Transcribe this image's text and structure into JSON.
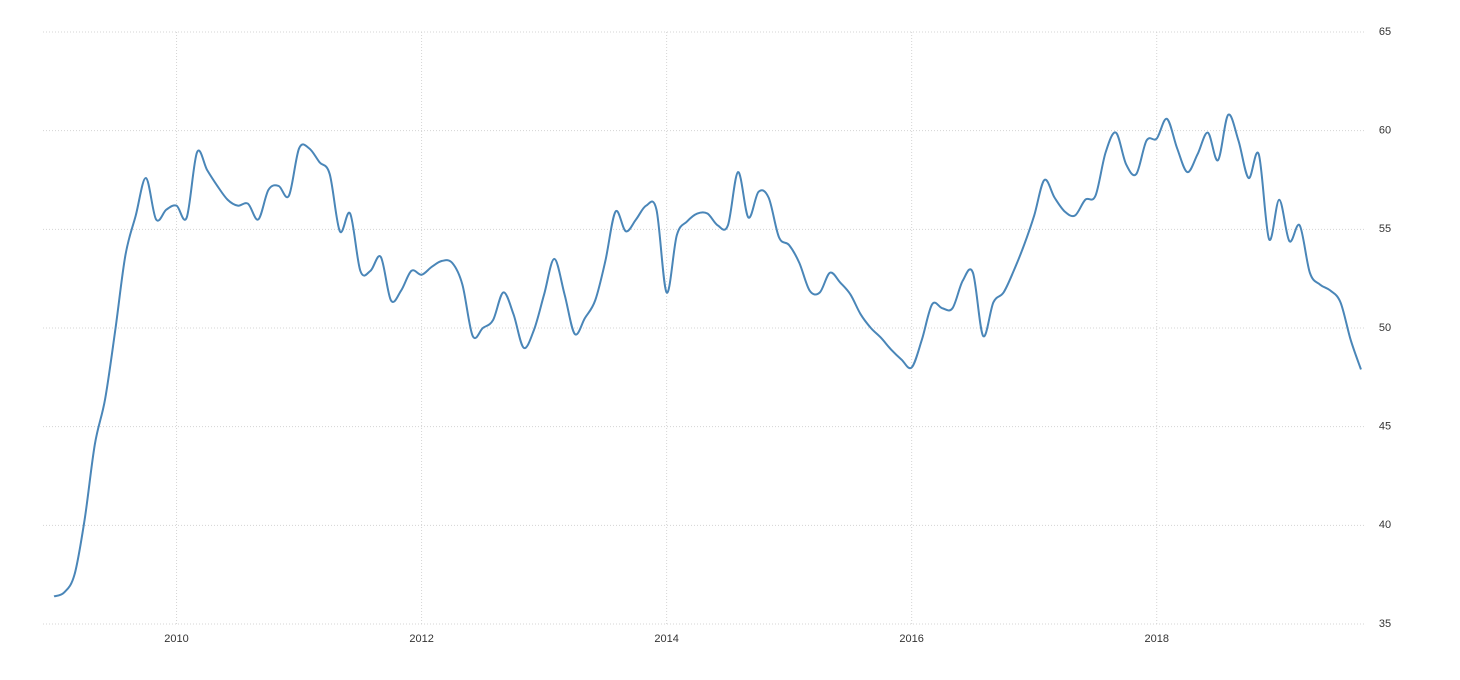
{
  "chart_data": {
    "type": "line",
    "xlim": [
      2008.91,
      2019.7
    ],
    "xticks": [
      2010,
      2012,
      2014,
      2016,
      2018
    ],
    "ylim": [
      35,
      65
    ],
    "yticks": [
      35,
      40,
      45,
      50,
      55,
      60,
      65
    ],
    "grid": true,
    "x": [
      2009,
      2009.083,
      2009.167,
      2009.25,
      2009.333,
      2009.417,
      2009.5,
      2009.583,
      2009.667,
      2009.75,
      2009.833,
      2009.917,
      2010,
      2010.083,
      2010.167,
      2010.25,
      2010.333,
      2010.417,
      2010.5,
      2010.583,
      2010.667,
      2010.75,
      2010.833,
      2010.917,
      2011,
      2011.083,
      2011.167,
      2011.25,
      2011.333,
      2011.417,
      2011.5,
      2011.583,
      2011.667,
      2011.75,
      2011.833,
      2011.917,
      2012,
      2012.083,
      2012.167,
      2012.25,
      2012.333,
      2012.417,
      2012.5,
      2012.583,
      2012.667,
      2012.75,
      2012.833,
      2012.917,
      2013,
      2013.083,
      2013.167,
      2013.25,
      2013.333,
      2013.417,
      2013.5,
      2013.583,
      2013.667,
      2013.75,
      2013.833,
      2013.917,
      2014,
      2014.083,
      2014.167,
      2014.25,
      2014.333,
      2014.417,
      2014.5,
      2014.583,
      2014.667,
      2014.75,
      2014.833,
      2014.917,
      2015,
      2015.083,
      2015.167,
      2015.25,
      2015.333,
      2015.417,
      2015.5,
      2015.583,
      2015.667,
      2015.75,
      2015.833,
      2015.917,
      2016,
      2016.083,
      2016.167,
      2016.25,
      2016.333,
      2016.417,
      2016.5,
      2016.583,
      2016.667,
      2016.75,
      2016.833,
      2016.917,
      2017,
      2017.083,
      2017.167,
      2017.25,
      2017.333,
      2017.417,
      2017.5,
      2017.583,
      2017.667,
      2017.75,
      2017.833,
      2017.917,
      2018,
      2018.083,
      2018.167,
      2018.25,
      2018.333,
      2018.417,
      2018.5,
      2018.583,
      2018.667,
      2018.75,
      2018.833,
      2018.917,
      2019,
      2019.083,
      2019.167,
      2019.25,
      2019.333,
      2019.417,
      2019.5,
      2019.583,
      2019.667
    ],
    "series": [
      {
        "color": "#4a86b8",
        "values": [
          36.4,
          36.6,
          37.5,
          40.3,
          44.1,
          46.4,
          49.9,
          53.7,
          55.7,
          57.6,
          55.5,
          56.0,
          56.2,
          55.6,
          58.9,
          58.0,
          57.2,
          56.5,
          56.2,
          56.3,
          55.5,
          57.0,
          57.2,
          56.7,
          59.1,
          59.1,
          58.4,
          57.8,
          54.9,
          55.8,
          52.9,
          52.9,
          53.6,
          51.4,
          51.9,
          52.9,
          52.7,
          53.1,
          53.4,
          53.3,
          52.2,
          49.6,
          50.0,
          50.4,
          51.8,
          50.7,
          49.0,
          49.9,
          51.7,
          53.5,
          51.7,
          49.7,
          50.5,
          51.4,
          53.4,
          55.9,
          54.9,
          55.5,
          56.2,
          56.0,
          51.8,
          54.7,
          55.4,
          55.8,
          55.8,
          55.2,
          55.2,
          57.9,
          55.6,
          56.9,
          56.6,
          54.6,
          54.2,
          53.3,
          51.9,
          51.8,
          52.8,
          52.3,
          51.7,
          50.7,
          50.0,
          49.5,
          48.9,
          48.4,
          48.0,
          49.4,
          51.2,
          51.0,
          51.0,
          52.4,
          52.8,
          49.6,
          51.3,
          51.8,
          52.9,
          54.2,
          55.7,
          57.5,
          56.6,
          55.9,
          55.7,
          56.5,
          56.7,
          58.9,
          59.9,
          58.3,
          57.8,
          59.5,
          59.6,
          60.6,
          59.1,
          57.9,
          58.8,
          59.9,
          58.5,
          60.8,
          59.5,
          57.6,
          58.8,
          54.5,
          56.5,
          54.4,
          55.2,
          52.8,
          52.2,
          51.9,
          51.3,
          49.4,
          47.9
        ]
      }
    ]
  }
}
